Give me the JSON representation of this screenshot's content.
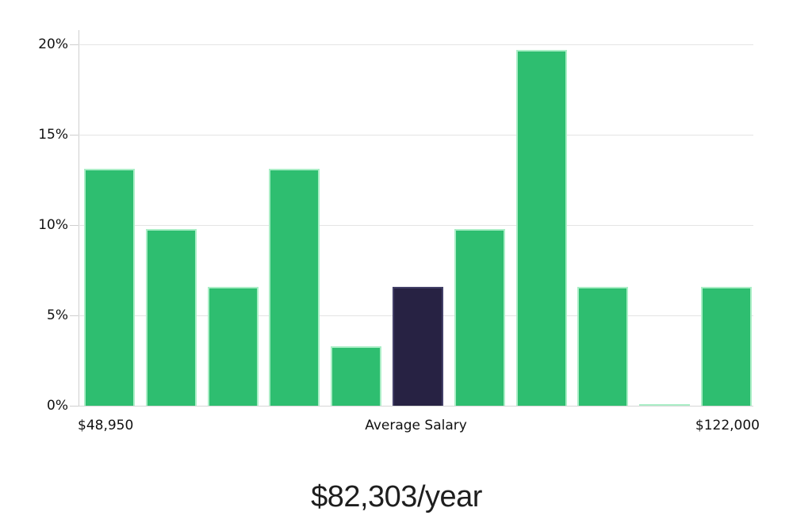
{
  "chart_data": {
    "type": "bar",
    "title": "$82,303/year",
    "values": [
      13.1,
      9.8,
      6.6,
      13.1,
      3.3,
      6.6,
      9.8,
      19.7,
      6.6,
      0.1,
      6.6
    ],
    "highlight_index": 5,
    "highlight_meaning": "Average Salary",
    "ylim": [
      0,
      20
    ],
    "yticks": [
      0,
      5,
      10,
      15,
      20
    ],
    "ytick_labels": [
      "0%",
      "5%",
      "10%",
      "15%",
      "20%"
    ],
    "xlabel_left": "$48,950",
    "xlabel_center": "Average Salary",
    "xlabel_right": "$122,000",
    "grid": true,
    "legend": "none",
    "colors": {
      "bar": "#2ebe70",
      "bar_border": "#aaeec6",
      "highlight": "#272243",
      "highlight_border": "#434068",
      "gridline": "#e4e4e4",
      "baseline": "#d6d6d6",
      "axis": "#cfcfcf",
      "text": "#111111"
    }
  }
}
